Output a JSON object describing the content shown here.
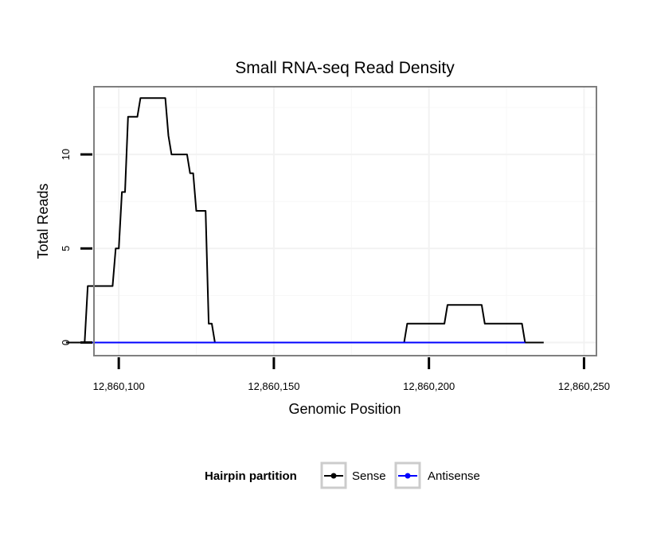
{
  "chart_data": {
    "type": "line",
    "title": "Small RNA-seq Read Density",
    "xlabel": "Genomic Position",
    "ylabel": "Total Reads",
    "xlim": [
      12860092,
      12860254
    ],
    "ylim": [
      -0.7,
      13.6
    ],
    "x_ticks": [
      {
        "value": 12860100,
        "label": "12,860,100"
      },
      {
        "value": 12860150,
        "label": "12,860,150"
      },
      {
        "value": 12860200,
        "label": "12,860,200"
      },
      {
        "value": 12860250,
        "label": "12,860,250"
      }
    ],
    "y_ticks": [
      {
        "value": 0,
        "label": "0"
      },
      {
        "value": 5,
        "label": "5"
      },
      {
        "value": 10,
        "label": "10"
      }
    ],
    "grid": true,
    "legend": {
      "title": "Hairpin partition",
      "placement": "bottom",
      "entries": [
        {
          "name": "Sense",
          "color": "#000000"
        },
        {
          "name": "Antisense",
          "color": "#0000ff"
        }
      ]
    },
    "series": [
      {
        "name": "Sense",
        "color": "#000000",
        "points": [
          [
            12860083,
            0
          ],
          [
            12860089,
            0
          ],
          [
            12860090,
            3
          ],
          [
            12860098,
            3
          ],
          [
            12860099,
            5
          ],
          [
            12860100,
            5
          ],
          [
            12860101,
            8
          ],
          [
            12860102,
            8
          ],
          [
            12860103,
            12
          ],
          [
            12860106,
            12
          ],
          [
            12860107,
            13
          ],
          [
            12860115,
            13
          ],
          [
            12860116,
            11
          ],
          [
            12860117,
            10
          ],
          [
            12860122,
            10
          ],
          [
            12860123,
            9
          ],
          [
            12860124,
            9
          ],
          [
            12860125,
            7
          ],
          [
            12860128,
            7
          ],
          [
            12860129,
            1
          ],
          [
            12860130,
            1
          ],
          [
            12860131,
            0
          ],
          [
            12860192,
            0
          ],
          [
            12860193,
            1
          ],
          [
            12860205,
            1
          ],
          [
            12860206,
            2
          ],
          [
            12860217,
            2
          ],
          [
            12860218,
            1
          ],
          [
            12860230,
            1
          ],
          [
            12860231,
            0
          ],
          [
            12860237,
            0
          ]
        ]
      },
      {
        "name": "Antisense",
        "color": "#0000ff",
        "points": [
          [
            12860089,
            0
          ],
          [
            12860231,
            0
          ]
        ]
      }
    ]
  }
}
